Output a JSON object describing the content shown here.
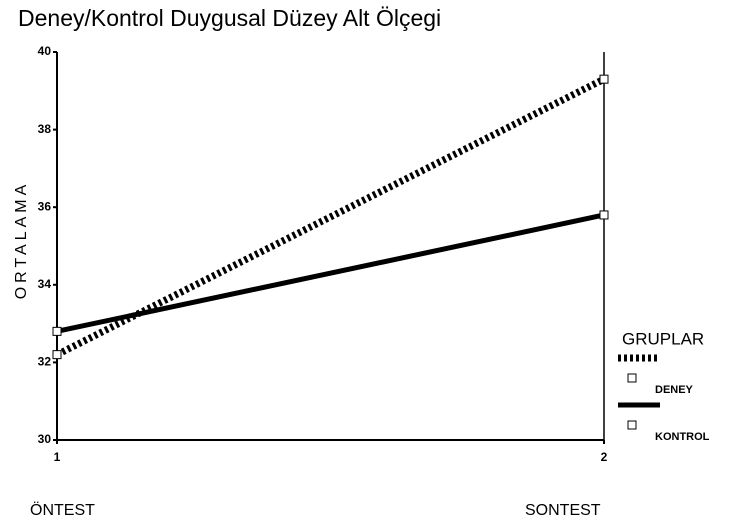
{
  "chart_data": {
    "type": "line",
    "title": "Deney/Kontrol Duygusal Düzey Alt Ölçegi",
    "y_label": "ORTALAMA",
    "x": [
      1,
      2
    ],
    "xlim": [
      1,
      2
    ],
    "xticks": [
      1,
      2
    ],
    "x_annotations": [
      "ÖNTEST",
      "SONTEST"
    ],
    "ylim": [
      30,
      40
    ],
    "yticks": [
      30,
      32,
      34,
      36,
      38,
      40
    ],
    "legend_title": "GRUPLAR",
    "legend": "right",
    "series": [
      {
        "name": "DENEY",
        "color": "#000000",
        "style": "dotted",
        "values": [
          32.2,
          39.3
        ]
      },
      {
        "name": "KONTROL",
        "color": "#000000",
        "style": "solid",
        "values": [
          32.8,
          35.8
        ]
      }
    ]
  }
}
